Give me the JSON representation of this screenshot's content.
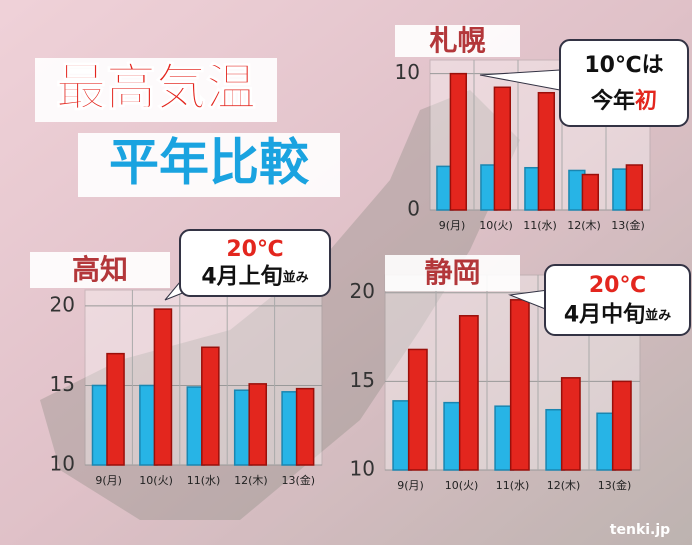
{
  "title": "最高気温",
  "subtitle": "平年比較",
  "credit": "tenki.jp",
  "chart_data": [
    {
      "type": "bar",
      "title": "札幌",
      "annotation": [
        "10℃は",
        "今年",
        "初"
      ],
      "categories": [
        "9(月)",
        "10(火)",
        "11(水)",
        "12(木)",
        "13(金)"
      ],
      "series": [
        {
          "color": "#27b4e6",
          "values": [
            3.2,
            3.3,
            3.1,
            2.9,
            3.0
          ]
        },
        {
          "color": "#e3261e",
          "values": [
            10,
            9,
            8.6,
            2.6,
            3.3
          ]
        }
      ],
      "ylim": [
        0,
        11
      ],
      "yticks": [
        0,
        10
      ],
      "grid": true
    },
    {
      "type": "bar",
      "title": "高知",
      "annotation": [
        "20℃",
        "4月上旬",
        "並み"
      ],
      "categories": [
        "9(月)",
        "10(火)",
        "11(水)",
        "12(木)",
        "13(金)"
      ],
      "series": [
        {
          "color": "#27b4e6",
          "values": [
            15.0,
            15.0,
            14.9,
            14.7,
            14.6
          ]
        },
        {
          "color": "#e3261e",
          "values": [
            17.0,
            19.8,
            17.4,
            15.1,
            14.8
          ]
        }
      ],
      "ylim": [
        10,
        21
      ],
      "yticks": [
        10,
        15,
        20
      ],
      "grid": true
    },
    {
      "type": "bar",
      "title": "静岡",
      "annotation": [
        "20℃",
        "4月中旬",
        "並み"
      ],
      "categories": [
        "9(月)",
        "10(火)",
        "11(水)",
        "12(木)",
        "13(金)"
      ],
      "series": [
        {
          "color": "#27b4e6",
          "values": [
            13.9,
            13.8,
            13.6,
            13.4,
            13.2
          ]
        },
        {
          "color": "#e3261e",
          "values": [
            16.8,
            18.7,
            19.6,
            15.2,
            15.0
          ]
        }
      ],
      "ylim": [
        10,
        21
      ],
      "yticks": [
        10,
        15,
        20
      ],
      "grid": true
    }
  ]
}
